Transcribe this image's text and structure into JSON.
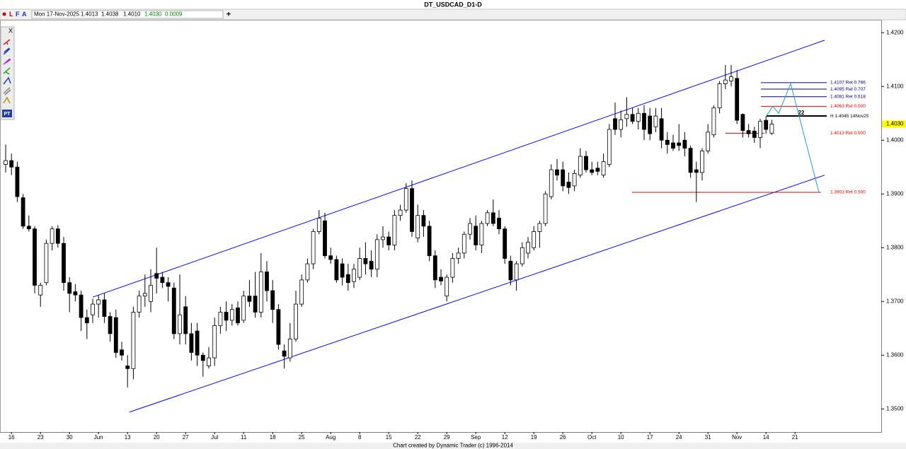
{
  "header": {
    "title": "DT_USDCAD_D1-D",
    "toolbar": [
      "L",
      "F",
      "A"
    ],
    "date": "Mon 17-Nov-2025",
    "open": "1.4013",
    "high": "1.4038",
    "low": "1.4010",
    "close": "1.4030",
    "change": "0.0009",
    "footer": "Chart created by Dynamic Trader  (c)  1996-2014"
  },
  "chart_data": {
    "type": "candlestick",
    "categories": [
      null,
      "16",
      null,
      null,
      null,
      null,
      "23",
      null,
      null,
      null,
      null,
      "30",
      null,
      null,
      null,
      null,
      "Jun",
      null,
      null,
      null,
      null,
      "13",
      null,
      null,
      null,
      null,
      "20",
      null,
      null,
      null,
      null,
      "27",
      null,
      null,
      null,
      null,
      "Jul",
      null,
      null,
      null,
      null,
      "11",
      null,
      null,
      null,
      null,
      "18",
      null,
      null,
      null,
      null,
      "25",
      null,
      null,
      null,
      null,
      "Aug",
      null,
      null,
      null,
      null,
      "8",
      null,
      null,
      null,
      null,
      "15",
      null,
      null,
      null,
      null,
      "22",
      null,
      null,
      null,
      null,
      "29",
      null,
      null,
      null,
      null,
      "Sep",
      null,
      null,
      null,
      null,
      "12",
      null,
      null,
      null,
      null,
      "19",
      null,
      null,
      null,
      null,
      "26",
      null,
      null,
      null,
      null,
      "Oct",
      null,
      null,
      null,
      null,
      "10",
      null,
      null,
      null,
      null,
      "17",
      null,
      null,
      null,
      null,
      "24",
      null,
      null,
      null,
      null,
      "31",
      null,
      null,
      null,
      null,
      "Nov",
      null,
      null,
      null,
      null,
      "14",
      null,
      null,
      null,
      null,
      "21",
      null,
      null,
      null,
      null,
      null,
      null,
      null,
      null,
      null,
      null,
      null,
      null,
      null,
      null
    ],
    "open": [
      1.3955,
      1.3962,
      1.395,
      1.3893,
      1.384,
      1.3835,
      1.3712,
      1.3735,
      1.3808,
      1.3835,
      1.3808,
      1.3735,
      1.3718,
      1.3712,
      1.367,
      1.3675,
      1.3695,
      1.3703,
      1.3672,
      1.367,
      1.361,
      1.358,
      1.3575,
      1.368,
      1.371,
      1.37,
      1.3752,
      1.3745,
      1.3735,
      1.3725,
      1.364,
      1.369,
      1.364,
      1.3645,
      1.36,
      1.358,
      1.3595,
      1.3655,
      1.368,
      1.3665,
      1.3688,
      1.3665,
      1.371,
      1.371,
      1.368,
      1.3755,
      1.372,
      1.3685,
      1.3608,
      1.3595,
      1.363,
      1.3695,
      1.374,
      1.377,
      1.383,
      1.385,
      1.3785,
      1.3778,
      1.377,
      1.375,
      1.3737,
      1.3745,
      1.378,
      1.3775,
      1.376,
      1.3815,
      1.382,
      1.3805,
      1.386,
      1.387,
      1.391,
      1.3818,
      1.386,
      1.384,
      1.3785,
      1.3745,
      1.371,
      1.3745,
      1.378,
      1.379,
      1.3825,
      1.384,
      1.3805,
      1.3845,
      1.3865,
      1.3855,
      1.3835,
      1.3775,
      1.374,
      1.377,
      1.379,
      1.38,
      1.383,
      1.3845,
      1.3895,
      1.3945,
      1.3945,
      1.3922,
      1.3915,
      1.3935,
      1.397,
      1.3945,
      1.3948,
      1.3935,
      1.3955,
      1.404,
      1.402,
      1.404,
      1.4048,
      1.4035,
      1.405,
      1.4045,
      1.4025,
      1.404,
      1.4,
      1.3995,
      1.3995,
      1.4,
      1.3985,
      1.3945,
      1.394,
      1.398,
      1.401,
      1.406,
      1.4105,
      1.411,
      1.4115,
      1.4048,
      1.4018,
      1.4017,
      1.4005,
      1.4037,
      1.4013,
      null,
      null,
      null,
      null,
      null,
      null,
      null,
      null,
      null,
      null,
      null,
      null,
      null,
      null,
      null,
      null,
      null,
      null
    ],
    "high": [
      1.3992,
      1.3975,
      1.396,
      1.39,
      1.386,
      1.384,
      1.3735,
      1.3815,
      1.384,
      1.3842,
      1.382,
      1.3745,
      1.3732,
      1.372,
      1.3685,
      1.3705,
      1.3712,
      1.3715,
      1.368,
      1.3685,
      1.3625,
      1.36,
      1.369,
      1.372,
      1.375,
      1.376,
      1.38,
      1.3755,
      1.3745,
      1.3735,
      1.375,
      1.371,
      1.366,
      1.366,
      1.3605,
      1.3615,
      1.367,
      1.369,
      1.37,
      1.3695,
      1.37,
      1.372,
      1.374,
      1.3755,
      1.379,
      1.3775,
      1.374,
      1.3695,
      1.362,
      1.366,
      1.372,
      1.375,
      1.378,
      1.3835,
      1.387,
      1.3865,
      1.38,
      1.3785,
      1.378,
      1.377,
      1.377,
      1.38,
      1.381,
      1.3795,
      1.3825,
      1.384,
      1.383,
      1.387,
      1.388,
      1.392,
      1.3925,
      1.388,
      1.387,
      1.385,
      1.3795,
      1.376,
      1.375,
      1.379,
      1.38,
      1.383,
      1.3855,
      1.386,
      1.385,
      1.387,
      1.389,
      1.387,
      1.384,
      1.3785,
      1.3775,
      1.381,
      1.382,
      1.384,
      1.385,
      1.3905,
      1.3955,
      1.3965,
      1.396,
      1.394,
      1.3945,
      1.3985,
      1.398,
      1.396,
      1.396,
      1.3975,
      1.403,
      1.407,
      1.4055,
      1.408,
      1.406,
      1.406,
      1.4065,
      1.406,
      1.406,
      1.406,
      1.4015,
      1.401,
      1.403,
      1.4015,
      1.399,
      1.396,
      1.3985,
      1.403,
      1.4065,
      1.411,
      1.414,
      1.414,
      1.413,
      1.405,
      1.403,
      1.4025,
      1.404,
      1.4045,
      1.4038,
      null,
      null,
      null,
      null,
      null,
      null,
      null,
      null,
      null,
      null,
      null,
      null,
      null,
      null,
      null,
      null,
      null,
      null
    ],
    "low": [
      1.394,
      1.3935,
      1.3885,
      1.3835,
      1.383,
      1.3715,
      1.369,
      1.373,
      1.3795,
      1.38,
      1.372,
      1.368,
      1.37,
      1.3645,
      1.363,
      1.366,
      1.367,
      1.366,
      1.3625,
      1.3595,
      1.359,
      1.354,
      1.3555,
      1.367,
      1.369,
      1.368,
      1.3715,
      1.3725,
      1.37,
      1.363,
      1.362,
      1.362,
      1.359,
      1.358,
      1.356,
      1.3575,
      1.358,
      1.364,
      1.3645,
      1.3655,
      1.3655,
      1.366,
      1.369,
      1.367,
      1.367,
      1.37,
      1.366,
      1.361,
      1.3575,
      1.3588,
      1.3625,
      1.369,
      1.3735,
      1.376,
      1.3825,
      1.378,
      1.377,
      1.3735,
      1.373,
      1.372,
      1.3725,
      1.374,
      1.375,
      1.3745,
      1.3745,
      1.38,
      1.3795,
      1.3795,
      1.385,
      1.3865,
      1.382,
      1.381,
      1.382,
      1.3775,
      1.3725,
      1.373,
      1.37,
      1.3735,
      1.377,
      1.378,
      1.3815,
      1.3795,
      1.379,
      1.384,
      1.384,
      1.3825,
      1.377,
      1.373,
      1.372,
      1.3765,
      1.378,
      1.3795,
      1.38,
      1.384,
      1.389,
      1.3925,
      1.3905,
      1.39,
      1.3905,
      1.393,
      1.394,
      1.3935,
      1.3935,
      1.393,
      1.395,
      1.401,
      1.4005,
      1.4025,
      1.403,
      1.402,
      1.4,
      1.4,
      1.4015,
      1.3985,
      1.3975,
      1.398,
      1.398,
      1.397,
      1.393,
      1.3885,
      1.3925,
      1.3975,
      1.4005,
      1.405,
      1.4095,
      1.41,
      1.403,
      1.4005,
      1.4005,
      1.3995,
      1.3985,
      1.4012,
      1.401,
      null,
      null,
      null,
      null,
      null,
      null,
      null,
      null,
      null,
      null,
      null,
      null,
      null,
      null,
      null,
      null,
      null,
      null
    ],
    "close": [
      1.3962,
      1.395,
      1.3895,
      1.384,
      1.3835,
      1.373,
      1.373,
      1.3808,
      1.3835,
      1.3808,
      1.3735,
      1.3715,
      1.3712,
      1.367,
      1.366,
      1.3695,
      1.3703,
      1.3672,
      1.364,
      1.3605,
      1.36,
      1.3575,
      1.368,
      1.371,
      1.3715,
      1.373,
      1.3743,
      1.3735,
      1.3728,
      1.364,
      1.3675,
      1.364,
      1.3605,
      1.36,
      1.359,
      1.3595,
      1.3655,
      1.368,
      1.3665,
      1.3685,
      1.366,
      1.371,
      1.37,
      1.368,
      1.3755,
      1.372,
      1.3685,
      1.362,
      1.3598,
      1.363,
      1.3695,
      1.374,
      1.377,
      1.383,
      1.3855,
      1.3785,
      1.3778,
      1.374,
      1.3745,
      1.3735,
      1.376,
      1.378,
      1.377,
      1.376,
      1.3815,
      1.382,
      1.3805,
      1.386,
      1.387,
      1.391,
      1.383,
      1.386,
      1.384,
      1.3785,
      1.374,
      1.3738,
      1.3745,
      1.378,
      1.379,
      1.3825,
      1.3845,
      1.3805,
      1.3845,
      1.3865,
      1.3845,
      1.3835,
      1.378,
      1.374,
      1.377,
      1.38,
      1.381,
      1.383,
      1.3845,
      1.39,
      1.3945,
      1.3935,
      1.3915,
      1.3912,
      1.3938,
      1.397,
      1.3945,
      1.394,
      1.3942,
      1.396,
      1.402,
      1.402,
      1.4038,
      1.4048,
      1.4035,
      1.405,
      1.402,
      1.4012,
      1.4045,
      1.4,
      1.3992,
      1.3985,
      1.399,
      1.3985,
      1.394,
      1.394,
      1.398,
      1.4015,
      1.406,
      1.4105,
      1.4112,
      1.4118,
      1.4037,
      1.4018,
      1.4012,
      1.4005,
      1.4035,
      1.402,
      1.403,
      null,
      null,
      null,
      null,
      null,
      null,
      null,
      null,
      null,
      null,
      null,
      null,
      null,
      null,
      null,
      null,
      null,
      null
    ],
    "up_color": "#ffffff",
    "down_color": "#000000",
    "outline_color": "#000000",
    "ylim": [
      1.3457,
      1.4224
    ],
    "yticks": [
      {
        "value": 1.42,
        "label": "1.4200"
      },
      {
        "value": 1.41,
        "label": "1.4100"
      },
      {
        "value": 1.4,
        "label": "1.4000"
      },
      {
        "value": 1.39,
        "label": "1.3900"
      },
      {
        "value": 1.38,
        "label": "1.3800"
      },
      {
        "value": 1.37,
        "label": "1.3700"
      },
      {
        "value": 1.36,
        "label": "1.3600"
      },
      {
        "value": 1.35,
        "label": "1.3500"
      }
    ],
    "grid": false,
    "last_price": {
      "value": 1.403,
      "label": "1.4030",
      "color": "#ffff00"
    },
    "channels": [
      {
        "color": "#0000ff",
        "values": [
          1.3708,
          1.4186
        ]
      },
      {
        "color": "#0000ff",
        "values": [
          1.3494,
          1.3935
        ]
      }
    ],
    "levels": [
      {
        "value": 1.4107,
        "label": "1.4107 Ret 0.786",
        "color": "#000080"
      },
      {
        "value": 1.4095,
        "label": "1.4095 Ret 0.707",
        "color": "#000080"
      },
      {
        "value": 1.4081,
        "label": "1.4081 Ret 0.618",
        "color": "#000080"
      },
      {
        "value": 1.4063,
        "label": "1.4063 Ret 0.500",
        "color": "#e00000"
      },
      {
        "value": 1.4013,
        "label": "1.4013 Ret 0.500",
        "color": "#e00000"
      },
      {
        "value": 1.3903,
        "label": "1.3903 Ret 0.500",
        "color": "#e00000"
      },
      {
        "value": 1.4045,
        "label": "H 1.4045 14Nov25",
        "color": "#000000"
      }
    ],
    "marker_label": "22",
    "projection": {
      "color": "#1aa3b8",
      "values": [
        1.4046,
        1.4063,
        1.405,
        1.4105,
        1.3903
      ]
    }
  }
}
